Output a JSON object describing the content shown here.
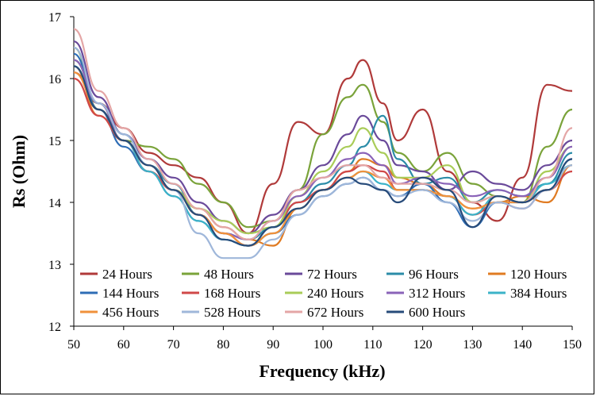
{
  "chart_data": {
    "type": "line",
    "title": "",
    "xlabel": "Frequency (kHz)",
    "ylabel": "Rs (Ohm)",
    "xlim": [
      50,
      150
    ],
    "ylim": [
      12,
      17
    ],
    "xticks": [
      50,
      60,
      70,
      80,
      90,
      100,
      110,
      120,
      130,
      140,
      150
    ],
    "yticks": [
      12,
      13,
      14,
      15,
      16,
      17
    ],
    "grid": false,
    "legend_position": "inside-bottom",
    "series": [
      {
        "name": "24 Hours",
        "color": "#b03a3a",
        "x": [
          50,
          55,
          60,
          65,
          70,
          75,
          80,
          85,
          90,
          95,
          100,
          105,
          108,
          112,
          115,
          120,
          125,
          130,
          135,
          140,
          145,
          150
        ],
        "y": [
          16.1,
          15.6,
          15.2,
          14.8,
          14.6,
          14.4,
          14.0,
          13.5,
          14.3,
          15.3,
          15.1,
          16.0,
          16.3,
          15.6,
          15.0,
          15.5,
          14.5,
          14.0,
          13.7,
          14.4,
          15.9,
          15.8
        ]
      },
      {
        "name": "48 Hours",
        "color": "#7aa33a",
        "x": [
          50,
          55,
          60,
          65,
          70,
          75,
          80,
          85,
          90,
          95,
          100,
          105,
          108,
          112,
          115,
          120,
          125,
          130,
          135,
          140,
          145,
          150
        ],
        "y": [
          16.5,
          15.5,
          15.0,
          14.9,
          14.7,
          14.3,
          14.0,
          13.6,
          13.7,
          14.2,
          15.1,
          15.7,
          15.9,
          15.3,
          14.8,
          14.5,
          14.8,
          14.3,
          14.1,
          14.0,
          14.9,
          15.5
        ]
      },
      {
        "name": "72 Hours",
        "color": "#6a4a9a",
        "x": [
          50,
          55,
          60,
          65,
          70,
          75,
          80,
          85,
          90,
          95,
          100,
          105,
          108,
          112,
          115,
          120,
          125,
          130,
          135,
          140,
          145,
          150
        ],
        "y": [
          16.6,
          15.7,
          15.1,
          14.7,
          14.4,
          14.0,
          13.7,
          13.5,
          13.8,
          14.2,
          14.6,
          15.1,
          15.4,
          15.0,
          14.6,
          14.5,
          14.2,
          14.5,
          14.3,
          14.2,
          14.6,
          15.0
        ]
      },
      {
        "name": "96 Hours",
        "color": "#2b8ca8",
        "x": [
          50,
          55,
          60,
          65,
          70,
          75,
          80,
          85,
          90,
          95,
          100,
          105,
          108,
          112,
          115,
          120,
          125,
          130,
          135,
          140,
          145,
          150
        ],
        "y": [
          16.3,
          15.6,
          15.1,
          14.6,
          14.3,
          13.8,
          13.5,
          13.4,
          13.6,
          14.0,
          14.3,
          14.6,
          14.9,
          15.4,
          14.7,
          14.3,
          14.4,
          14.0,
          14.2,
          14.1,
          14.3,
          14.8
        ]
      },
      {
        "name": "120 Hours",
        "color": "#e07b22",
        "x": [
          50,
          55,
          60,
          65,
          70,
          75,
          80,
          85,
          90,
          95,
          100,
          105,
          108,
          112,
          115,
          120,
          125,
          130,
          135,
          140,
          145,
          150
        ],
        "y": [
          16.2,
          15.4,
          15.0,
          14.6,
          14.2,
          13.9,
          13.6,
          13.4,
          13.3,
          13.9,
          14.2,
          14.5,
          14.7,
          14.6,
          14.4,
          14.3,
          14.1,
          13.9,
          14.0,
          14.1,
          14.0,
          14.6
        ]
      },
      {
        "name": "144 Hours",
        "color": "#2e6db5",
        "x": [
          50,
          55,
          60,
          65,
          70,
          75,
          80,
          85,
          90,
          95,
          100,
          105,
          108,
          112,
          115,
          120,
          125,
          130,
          135,
          140,
          145,
          150
        ],
        "y": [
          16.4,
          15.5,
          14.9,
          14.5,
          14.1,
          13.7,
          13.4,
          13.3,
          13.5,
          13.8,
          14.1,
          14.3,
          14.4,
          14.2,
          14.1,
          14.3,
          14.0,
          13.6,
          14.0,
          14.0,
          14.2,
          14.7
        ]
      },
      {
        "name": "168 Hours",
        "color": "#d04848",
        "x": [
          50,
          55,
          60,
          65,
          70,
          75,
          80,
          85,
          90,
          95,
          100,
          105,
          108,
          112,
          115,
          120,
          125,
          130,
          135,
          140,
          145,
          150
        ],
        "y": [
          16.0,
          15.4,
          15.0,
          14.5,
          14.2,
          13.8,
          13.5,
          13.3,
          13.6,
          14.0,
          14.2,
          14.5,
          14.6,
          14.5,
          14.2,
          14.2,
          14.1,
          13.8,
          14.0,
          13.9,
          14.2,
          14.5
        ]
      },
      {
        "name": "240 Hours",
        "color": "#a9cc58",
        "x": [
          50,
          55,
          60,
          65,
          70,
          75,
          80,
          85,
          90,
          95,
          100,
          105,
          108,
          112,
          115,
          120,
          125,
          130,
          135,
          140,
          145,
          150
        ],
        "y": [
          16.3,
          15.6,
          15.0,
          14.6,
          14.2,
          13.9,
          13.7,
          13.5,
          13.6,
          14.1,
          14.5,
          14.9,
          15.2,
          14.8,
          14.4,
          14.4,
          14.6,
          14.0,
          14.1,
          14.0,
          14.5,
          14.9
        ]
      },
      {
        "name": "312 Hours",
        "color": "#8a63b8",
        "x": [
          50,
          55,
          60,
          65,
          70,
          75,
          80,
          85,
          90,
          95,
          100,
          105,
          108,
          112,
          115,
          120,
          125,
          130,
          135,
          140,
          145,
          150
        ],
        "y": [
          16.3,
          15.6,
          15.0,
          14.6,
          14.2,
          13.8,
          13.5,
          13.4,
          13.7,
          14.1,
          14.4,
          14.7,
          14.8,
          14.6,
          14.3,
          14.4,
          14.3,
          14.1,
          14.2,
          14.1,
          14.4,
          14.9
        ]
      },
      {
        "name": "384 Hours",
        "color": "#3bb3c8",
        "x": [
          50,
          55,
          60,
          65,
          70,
          75,
          80,
          85,
          90,
          95,
          100,
          105,
          108,
          112,
          115,
          120,
          125,
          130,
          135,
          140,
          145,
          150
        ],
        "y": [
          16.2,
          15.5,
          15.0,
          14.5,
          14.1,
          13.7,
          13.4,
          13.3,
          13.6,
          13.9,
          14.2,
          14.4,
          14.5,
          14.3,
          14.2,
          14.2,
          14.1,
          13.8,
          14.1,
          14.0,
          14.3,
          14.6
        ]
      },
      {
        "name": "456 Hours",
        "color": "#f0913a",
        "x": [
          50,
          55,
          60,
          65,
          70,
          75,
          80,
          85,
          90,
          95,
          100,
          105,
          108,
          112,
          115,
          120,
          125,
          130,
          135,
          140,
          145,
          150
        ],
        "y": [
          16.1,
          15.5,
          15.0,
          14.6,
          14.2,
          13.8,
          13.5,
          13.3,
          13.5,
          13.9,
          14.2,
          14.4,
          14.5,
          14.4,
          14.2,
          14.2,
          14.1,
          13.9,
          14.0,
          14.0,
          14.2,
          14.6
        ]
      },
      {
        "name": "528 Hours",
        "color": "#9fb7da",
        "x": [
          50,
          55,
          60,
          65,
          70,
          75,
          80,
          85,
          90,
          95,
          100,
          105,
          108,
          112,
          115,
          120,
          125,
          130,
          135,
          140,
          145,
          150
        ],
        "y": [
          16.5,
          15.6,
          15.1,
          14.6,
          14.2,
          13.5,
          13.1,
          13.1,
          13.4,
          13.8,
          14.1,
          14.3,
          14.4,
          14.2,
          14.1,
          14.2,
          14.0,
          13.7,
          14.0,
          13.9,
          14.2,
          14.6
        ]
      },
      {
        "name": "672 Hours",
        "color": "#e4a6a6",
        "x": [
          50,
          55,
          60,
          65,
          70,
          75,
          80,
          85,
          90,
          95,
          100,
          105,
          108,
          112,
          115,
          120,
          125,
          130,
          135,
          140,
          145,
          150
        ],
        "y": [
          16.8,
          15.8,
          15.2,
          14.7,
          14.3,
          13.9,
          13.6,
          13.4,
          13.7,
          14.2,
          14.4,
          14.6,
          14.6,
          14.4,
          14.3,
          14.3,
          14.2,
          14.0,
          14.1,
          14.0,
          14.4,
          15.2
        ]
      },
      {
        "name": "600 Hours",
        "color": "#274b7a",
        "x": [
          50,
          55,
          60,
          65,
          70,
          75,
          80,
          85,
          90,
          95,
          100,
          105,
          108,
          112,
          115,
          120,
          125,
          130,
          135,
          140,
          145,
          150
        ],
        "y": [
          16.2,
          15.5,
          15.0,
          14.6,
          14.2,
          13.8,
          13.4,
          13.3,
          13.6,
          13.9,
          14.2,
          14.4,
          14.3,
          14.2,
          14.0,
          14.4,
          14.2,
          13.6,
          14.1,
          14.0,
          14.2,
          14.7
        ]
      }
    ]
  }
}
